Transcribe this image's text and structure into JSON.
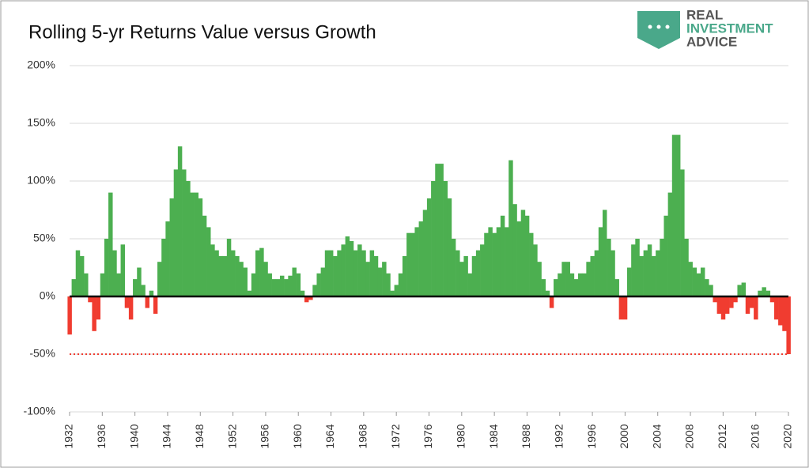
{
  "chart_data": {
    "type": "bar",
    "title": "Rolling 5-yr Returns  Value versus Growth",
    "logo": [
      "REAL",
      "INVESTMENT",
      "ADVICE"
    ],
    "x": [
      1932,
      1932.5,
      1933,
      1933.5,
      1934,
      1934.5,
      1935,
      1935.5,
      1936,
      1936.5,
      1937,
      1937.5,
      1938,
      1938.5,
      1939,
      1939.5,
      1940,
      1940.5,
      1941,
      1941.5,
      1942,
      1942.5,
      1943,
      1943.5,
      1944,
      1944.5,
      1945,
      1945.5,
      1946,
      1946.5,
      1947,
      1947.5,
      1948,
      1948.5,
      1949,
      1949.5,
      1950,
      1950.5,
      1951,
      1951.5,
      1952,
      1952.5,
      1953,
      1953.5,
      1954,
      1954.5,
      1955,
      1955.5,
      1956,
      1956.5,
      1957,
      1957.5,
      1958,
      1958.5,
      1959,
      1959.5,
      1960,
      1960.5,
      1961,
      1961.5,
      1962,
      1962.5,
      1963,
      1963.5,
      1964,
      1964.5,
      1965,
      1965.5,
      1966,
      1966.5,
      1967,
      1967.5,
      1968,
      1968.5,
      1969,
      1969.5,
      1970,
      1970.5,
      1971,
      1971.5,
      1972,
      1972.5,
      1973,
      1973.5,
      1974,
      1974.5,
      1975,
      1975.5,
      1976,
      1976.5,
      1977,
      1977.5,
      1978,
      1978.5,
      1979,
      1979.5,
      1980,
      1980.5,
      1981,
      1981.5,
      1982,
      1982.5,
      1983,
      1983.5,
      1984,
      1984.5,
      1985,
      1985.5,
      1986,
      1986.5,
      1987,
      1987.5,
      1988,
      1988.5,
      1989,
      1989.5,
      1990,
      1990.5,
      1991,
      1991.5,
      1992,
      1992.5,
      1993,
      1993.5,
      1994,
      1994.5,
      1995,
      1995.5,
      1996,
      1996.5,
      1997,
      1997.5,
      1998,
      1998.5,
      1999,
      1999.5,
      2000,
      2000.5,
      2001,
      2001.5,
      2002,
      2002.5,
      2003,
      2003.5,
      2004,
      2004.5,
      2005,
      2005.5,
      2006,
      2006.5,
      2007,
      2007.5,
      2008,
      2008.5,
      2009,
      2009.5,
      2010,
      2010.5,
      2011,
      2011.5,
      2012,
      2012.5,
      2013,
      2013.5,
      2014,
      2014.5,
      2015,
      2015.5,
      2016,
      2016.5,
      2017,
      2017.5,
      2018,
      2018.5,
      2019,
      2019.5,
      2020
    ],
    "values": [
      -33,
      15,
      40,
      35,
      20,
      -5,
      -30,
      -20,
      20,
      50,
      90,
      40,
      20,
      45,
      -10,
      -20,
      15,
      25,
      10,
      -10,
      5,
      -15,
      30,
      50,
      65,
      85,
      110,
      130,
      110,
      100,
      90,
      90,
      85,
      70,
      60,
      45,
      40,
      35,
      35,
      50,
      40,
      35,
      30,
      25,
      5,
      20,
      40,
      42,
      30,
      20,
      15,
      15,
      18,
      15,
      18,
      25,
      20,
      5,
      -5,
      -3,
      10,
      20,
      25,
      40,
      40,
      35,
      40,
      45,
      52,
      48,
      40,
      45,
      40,
      30,
      40,
      35,
      25,
      30,
      20,
      5,
      10,
      20,
      35,
      55,
      55,
      60,
      65,
      75,
      85,
      100,
      115,
      115,
      100,
      85,
      50,
      40,
      30,
      35,
      20,
      35,
      40,
      45,
      55,
      60,
      55,
      60,
      70,
      60,
      118,
      80,
      65,
      75,
      70,
      55,
      45,
      30,
      15,
      5,
      -10,
      15,
      20,
      30,
      30,
      20,
      15,
      20,
      20,
      30,
      35,
      40,
      60,
      75,
      50,
      40,
      15,
      -20,
      -20,
      25,
      45,
      50,
      35,
      40,
      45,
      35,
      40,
      50,
      70,
      90,
      140,
      140,
      110,
      50,
      30,
      25,
      20,
      25,
      15,
      10,
      -5,
      -15,
      -20,
      -15,
      -10,
      -5,
      10,
      12,
      -15,
      -10,
      -20,
      5,
      8,
      5,
      -5,
      -20,
      -25,
      -30,
      -50
    ],
    "positive_color": "#4caf50",
    "negative_color": "#f03c30",
    "xlim": [
      1932,
      2020
    ],
    "xticks": [
      1932,
      1936,
      1940,
      1944,
      1948,
      1952,
      1956,
      1960,
      1964,
      1968,
      1972,
      1976,
      1980,
      1984,
      1988,
      1992,
      1996,
      2000,
      2004,
      2008,
      2012,
      2016,
      2020
    ],
    "ylim": [
      -100,
      200
    ],
    "yticks": [
      {
        "value": -100,
        "label": "-100%"
      },
      {
        "value": -50,
        "label": "-50%"
      },
      {
        "value": 0,
        "label": "0%"
      },
      {
        "value": 50,
        "label": "50%"
      },
      {
        "value": 100,
        "label": "100%"
      },
      {
        "value": 150,
        "label": "150%"
      },
      {
        "value": 200,
        "label": "200%"
      }
    ],
    "reference_line": {
      "value": -50,
      "color": "#f03c30"
    },
    "grid": true
  }
}
